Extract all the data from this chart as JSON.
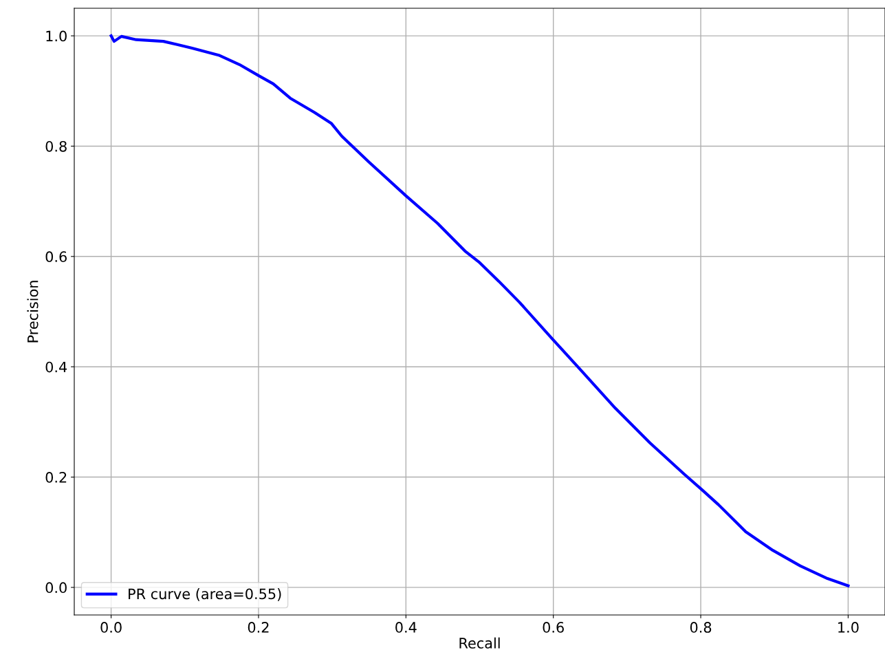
{
  "chart_data": {
    "type": "line",
    "xlabel": "Recall",
    "ylabel": "Precision",
    "series": [
      {
        "name": "PR curve (area=0.55)",
        "color": "#0000ff",
        "x": [
          0,
          0.004,
          0.014,
          0.034,
          0.071,
          0.109,
          0.146,
          0.174,
          0.2,
          0.22,
          0.243,
          0.276,
          0.299,
          0.313,
          0.35,
          0.4,
          0.443,
          0.48,
          0.499,
          0.526,
          0.554,
          0.599,
          0.638,
          0.684,
          0.731,
          0.777,
          0.8,
          0.824,
          0.861,
          0.898,
          0.935,
          0.972,
          1.0
        ],
        "values": [
          1.0,
          0.99,
          0.999,
          0.993,
          0.99,
          0.978,
          0.965,
          0.948,
          0.928,
          0.913,
          0.887,
          0.861,
          0.841,
          0.818,
          0.771,
          0.71,
          0.66,
          0.61,
          0.59,
          0.555,
          0.517,
          0.45,
          0.393,
          0.325,
          0.262,
          0.206,
          0.179,
          0.15,
          0.101,
          0.067,
          0.039,
          0.016,
          0.003
        ]
      }
    ],
    "xlim": [
      -0.05,
      1.05
    ],
    "ylim": [
      -0.05,
      1.05
    ],
    "xticks": [
      {
        "value": 0,
        "label": "0.0"
      },
      0.2,
      0.4,
      0.6,
      0.8,
      {
        "value": 1,
        "label": "1.0"
      }
    ],
    "yticks": [
      {
        "value": 0,
        "label": "0.0"
      },
      0.2,
      0.4,
      0.6,
      0.8,
      {
        "value": 1,
        "label": "1.0"
      }
    ],
    "grid": true,
    "legend": "lower left",
    "line_style": "solid",
    "marker": "none"
  }
}
